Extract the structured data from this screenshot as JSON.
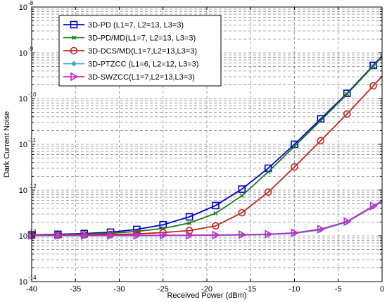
{
  "chart_data": {
    "type": "line",
    "xlabel": "Received Power (dBm)",
    "ylabel": "Dark Current Noise",
    "xlim": [
      -40,
      0
    ],
    "ylim_log10": [
      -14,
      -8
    ],
    "y_scale": "log",
    "x_ticks": [
      -40,
      -35,
      -30,
      -25,
      -20,
      -15,
      -10,
      -5,
      0
    ],
    "x_tick_labels": [
      "-40",
      "-35",
      "-30",
      "-25",
      "-20",
      "-15",
      "-10",
      "-5",
      "0"
    ],
    "y_ticks_base": "10",
    "y_ticks_exp": [
      "-14",
      "-13",
      "-12",
      "-11",
      "-10",
      "-9",
      "-8"
    ],
    "grid": true,
    "legend_position": "top-left",
    "x": [
      -40,
      -37,
      -34,
      -31,
      -28,
      -25,
      -22,
      -19,
      -16,
      -13,
      -10,
      -7,
      -4,
      -1
    ],
    "series": [
      {
        "name": "3D-PD (L1=7, L2=13, L3=3)",
        "color": "#0000cc",
        "marker": "square",
        "y": [
          1.05e-13,
          1.08e-13,
          1.12e-13,
          1.2e-13,
          1.38e-13,
          1.75e-13,
          2.6e-13,
          4.6e-13,
          1.05e-12,
          3e-12,
          1e-11,
          3.6e-11,
          1.3e-10,
          5.3e-10
        ]
      },
      {
        "name": "3D-PD/MD(L1=7, L2=13, L3=3)",
        "color": "#1a7a1a",
        "marker": "x",
        "y": [
          1.04e-13,
          1.06e-13,
          1.09e-13,
          1.14e-13,
          1.25e-13,
          1.45e-13,
          1.9e-13,
          3.1e-13,
          7.5e-13,
          2.5e-12,
          9e-12,
          3.3e-11,
          1.25e-10,
          5.1e-10
        ]
      },
      {
        "name": "3D-DCS/MD(L1=7,L2=13,L3=3)",
        "color": "#c0281e",
        "marker": "circle",
        "y": [
          1.02e-13,
          1.03e-13,
          1.05e-13,
          1.07e-13,
          1.1e-13,
          1.18e-13,
          1.3e-13,
          1.65e-13,
          3.2e-13,
          9e-13,
          3.2e-12,
          1.2e-11,
          4.6e-11,
          1.9e-10
        ]
      },
      {
        "name": "3D-PTZCC (L1=6, L2=12, L3=3)",
        "color": "#3aa6c9",
        "marker": "diamond",
        "y": [
          1e-13,
          1e-13,
          1e-13,
          1e-13,
          1e-13,
          1.01e-13,
          1.02e-13,
          1.03e-13,
          1.04e-13,
          1.07e-13,
          1.13e-13,
          1.35e-13,
          2e-13,
          4.3e-13
        ]
      },
      {
        "name": "3D-SWZCC(L1=7,L2=13,L3=3)",
        "color": "#c42bc4",
        "marker": "triangle-right",
        "y": [
          1.02e-13,
          1.02e-13,
          1.02e-13,
          1.02e-13,
          1.02e-13,
          1.03e-13,
          1.03e-13,
          1.04e-13,
          1.06e-13,
          1.09e-13,
          1.16e-13,
          1.4e-13,
          2.05e-13,
          4.5e-13
        ]
      }
    ]
  }
}
